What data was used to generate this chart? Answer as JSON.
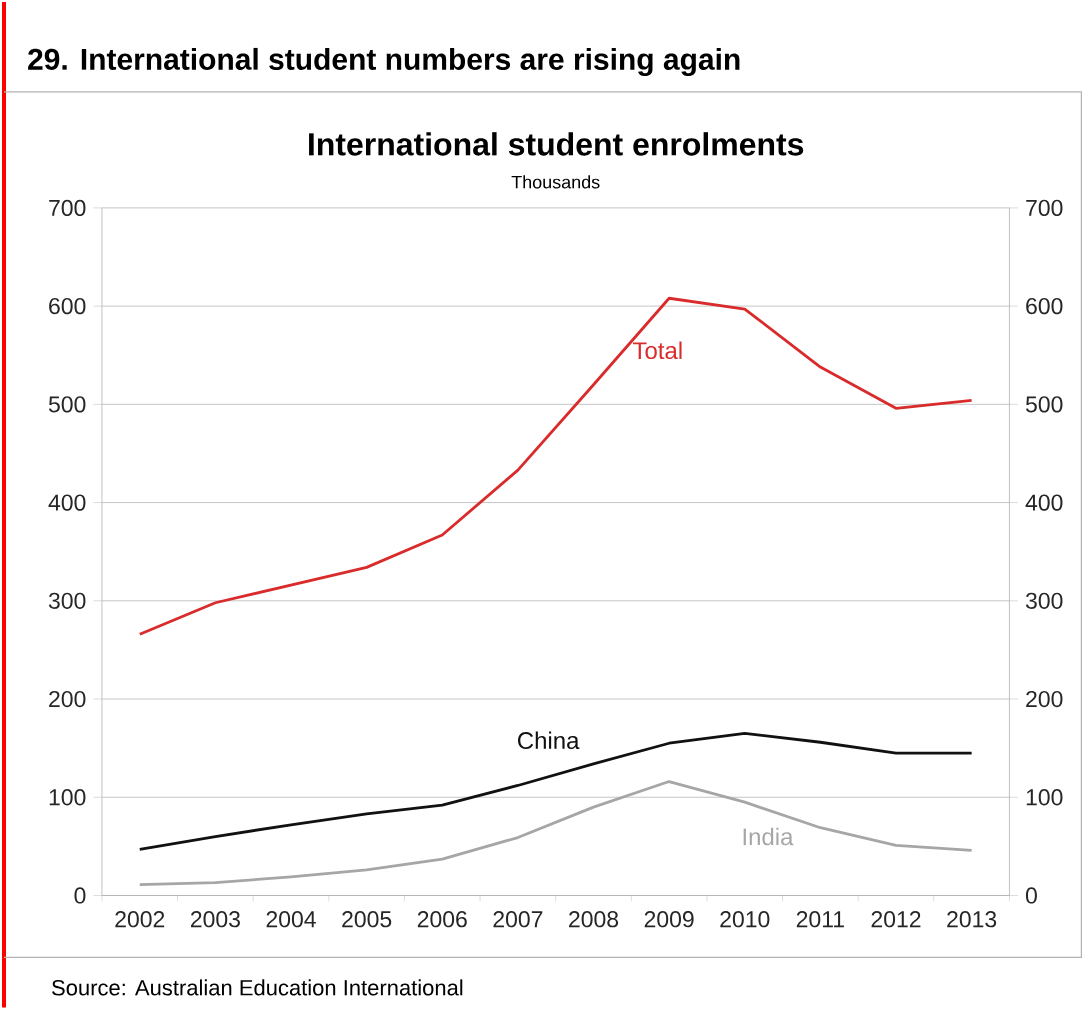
{
  "chart_data": {
    "type": "line",
    "title": "29. International student numbers are rising again",
    "subtitle": "International student enrolments",
    "categories": [
      "2002",
      "2003",
      "2004",
      "2005",
      "2006",
      "2007",
      "2008",
      "2009",
      "2010",
      "2011",
      "2012",
      "2013"
    ],
    "series": [
      {
        "name": "Total",
        "color": "#d92b2b",
        "values": [
          266,
          298,
          316,
          334,
          367,
          433,
          520,
          608,
          597,
          538,
          496,
          504
        ]
      },
      {
        "name": "China",
        "color": "#111111",
        "values": [
          47,
          60,
          72,
          83,
          92,
          112,
          134,
          155,
          165,
          156,
          145,
          145
        ]
      },
      {
        "name": "India",
        "color": "#a6a6a6",
        "values": [
          11,
          13,
          19,
          26,
          37,
          59,
          90,
          116,
          95,
          69,
          51,
          46
        ]
      }
    ],
    "ylim": [
      0,
      700
    ],
    "yticks": [
      0,
      100,
      200,
      300,
      400,
      500,
      600,
      700
    ],
    "y2lim": [
      0,
      700
    ],
    "y2ticks": [
      0,
      100,
      200,
      300,
      400,
      500,
      600,
      700
    ],
    "grid": "y",
    "legend": false,
    "marker": "none",
    "line_style": "solid",
    "annotations": [
      "Thousands",
      "Source: Australian Education International"
    ]
  }
}
